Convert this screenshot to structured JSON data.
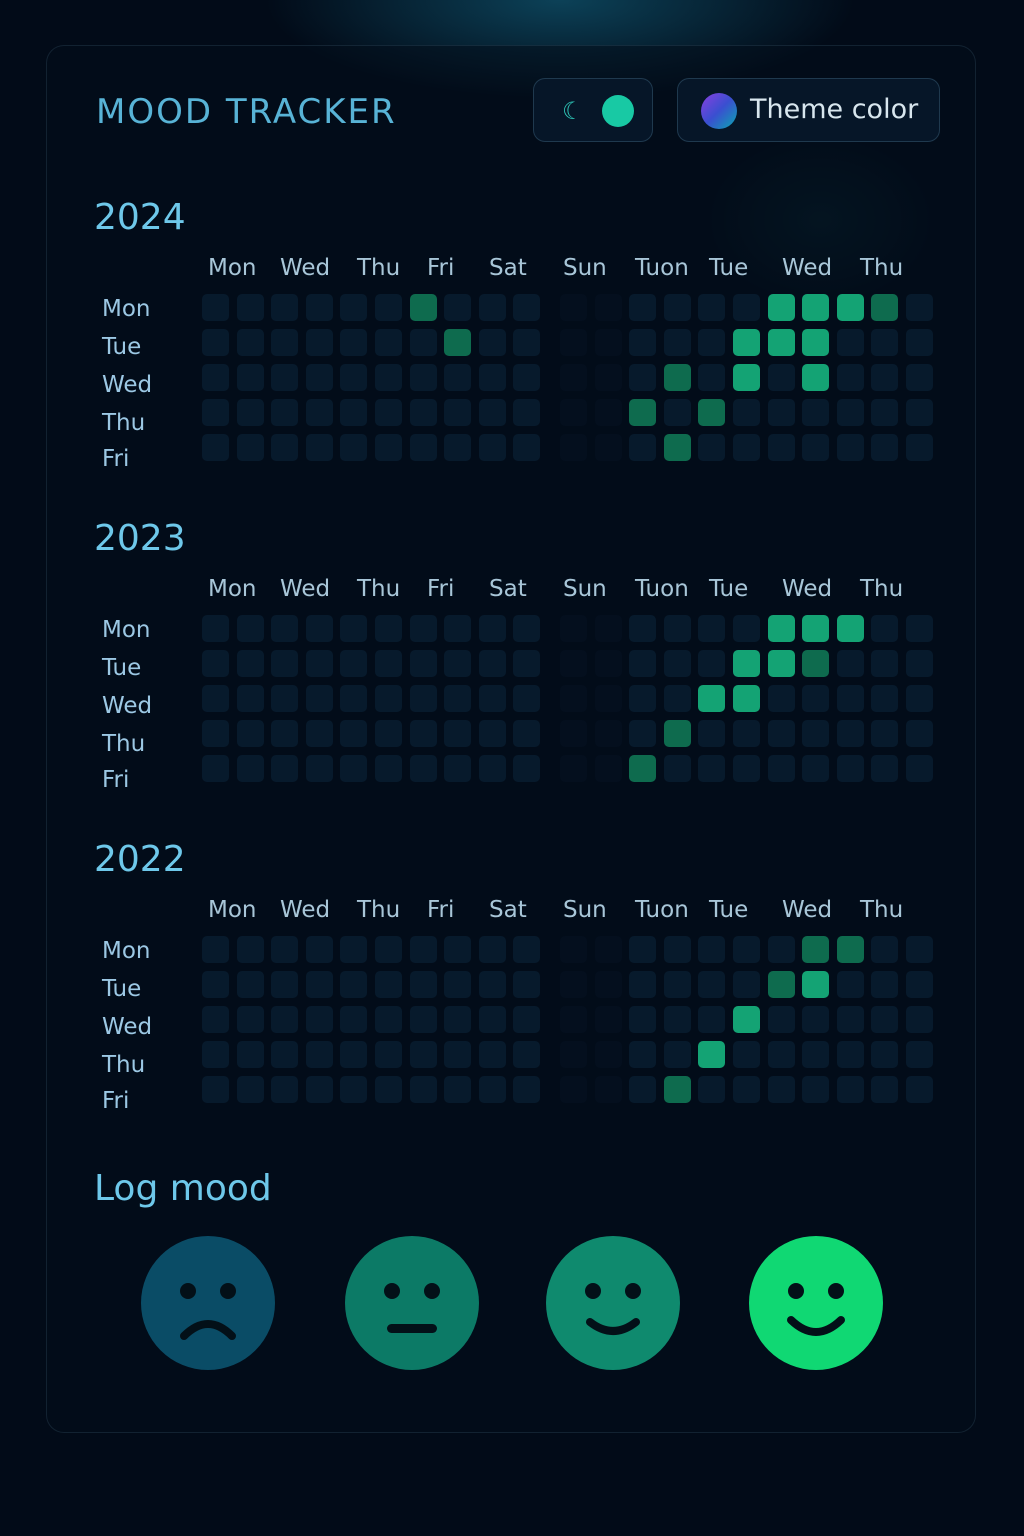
{
  "app": {
    "title": "MOOD TRACKER"
  },
  "header": {
    "dark_mode_toggle": {
      "state": "on",
      "icon": "moon-icon"
    },
    "theme_button": {
      "label": "Theme color",
      "icon": "gradient-swatch-icon"
    }
  },
  "colors": {
    "background": "#020b18",
    "accent": "#6ec8ea",
    "cell_empty": "#071a2c",
    "cell_level1": "#0e6b4e",
    "cell_level2": "#14a374",
    "mood_sad": "#0a4c66",
    "mood_neutral": "#0c7a66",
    "mood_content": "#0f8a6e",
    "mood_happy": "#10d873"
  },
  "calendar": {
    "column_labels": [
      "Mon",
      "Wed",
      "Thu",
      "Fri",
      "Sat",
      "Sun",
      "Tuon",
      "Tue",
      "Wed",
      "Thu"
    ],
    "row_labels": [
      "Mon",
      "Tue",
      "Wed",
      "Thu",
      "Fri"
    ],
    "years": [
      {
        "year": "2024",
        "grid": [
          [
            0,
            0,
            0,
            0,
            0,
            0,
            1,
            0,
            0,
            0,
            0,
            0,
            0,
            0,
            0,
            0,
            2,
            2,
            2,
            1,
            0
          ],
          [
            0,
            0,
            0,
            0,
            0,
            0,
            0,
            1,
            0,
            0,
            0,
            0,
            0,
            0,
            0,
            2,
            2,
            2,
            0,
            0,
            0
          ],
          [
            0,
            0,
            0,
            0,
            0,
            0,
            0,
            0,
            0,
            0,
            0,
            0,
            0,
            1,
            0,
            2,
            0,
            2,
            0,
            0,
            0
          ],
          [
            0,
            0,
            0,
            0,
            0,
            0,
            0,
            0,
            0,
            0,
            0,
            0,
            1,
            0,
            1,
            0,
            0,
            0,
            0,
            0,
            0
          ],
          [
            0,
            0,
            0,
            0,
            0,
            0,
            0,
            0,
            0,
            0,
            0,
            0,
            0,
            1,
            0,
            0,
            0,
            0,
            0,
            0,
            0
          ]
        ]
      },
      {
        "year": "2023",
        "grid": [
          [
            0,
            0,
            0,
            0,
            0,
            0,
            0,
            0,
            0,
            0,
            0,
            0,
            0,
            0,
            0,
            0,
            2,
            2,
            2,
            0,
            0
          ],
          [
            0,
            0,
            0,
            0,
            0,
            0,
            0,
            0,
            0,
            0,
            0,
            0,
            0,
            0,
            0,
            2,
            2,
            1,
            0,
            0,
            0
          ],
          [
            0,
            0,
            0,
            0,
            0,
            0,
            0,
            0,
            0,
            0,
            0,
            0,
            0,
            0,
            2,
            2,
            0,
            0,
            0,
            0,
            0
          ],
          [
            0,
            0,
            0,
            0,
            0,
            0,
            0,
            0,
            0,
            0,
            0,
            0,
            0,
            1,
            0,
            0,
            0,
            0,
            0,
            0,
            0
          ],
          [
            0,
            0,
            0,
            0,
            0,
            0,
            0,
            0,
            0,
            0,
            0,
            0,
            1,
            0,
            0,
            0,
            0,
            0,
            0,
            0,
            0
          ]
        ]
      },
      {
        "year": "2022",
        "grid": [
          [
            0,
            0,
            0,
            0,
            0,
            0,
            0,
            0,
            0,
            0,
            0,
            0,
            0,
            0,
            0,
            0,
            0,
            1,
            1,
            0,
            0
          ],
          [
            0,
            0,
            0,
            0,
            0,
            0,
            0,
            0,
            0,
            0,
            0,
            0,
            0,
            0,
            0,
            0,
            1,
            2,
            0,
            0,
            0
          ],
          [
            0,
            0,
            0,
            0,
            0,
            0,
            0,
            0,
            0,
            0,
            0,
            0,
            0,
            0,
            0,
            2,
            0,
            0,
            0,
            0,
            0
          ],
          [
            0,
            0,
            0,
            0,
            0,
            0,
            0,
            0,
            0,
            0,
            0,
            0,
            0,
            0,
            2,
            0,
            0,
            0,
            0,
            0,
            0
          ],
          [
            0,
            0,
            0,
            0,
            0,
            0,
            0,
            0,
            0,
            0,
            0,
            0,
            0,
            1,
            0,
            0,
            0,
            0,
            0,
            0,
            0
          ]
        ]
      }
    ]
  },
  "log_mood": {
    "title": "Log mood",
    "options": [
      {
        "mood": "sad",
        "icon": "sad-face-icon"
      },
      {
        "mood": "neutral",
        "icon": "neutral-face-icon"
      },
      {
        "mood": "content",
        "icon": "slight-smile-face-icon"
      },
      {
        "mood": "happy",
        "icon": "happy-face-icon"
      }
    ]
  }
}
